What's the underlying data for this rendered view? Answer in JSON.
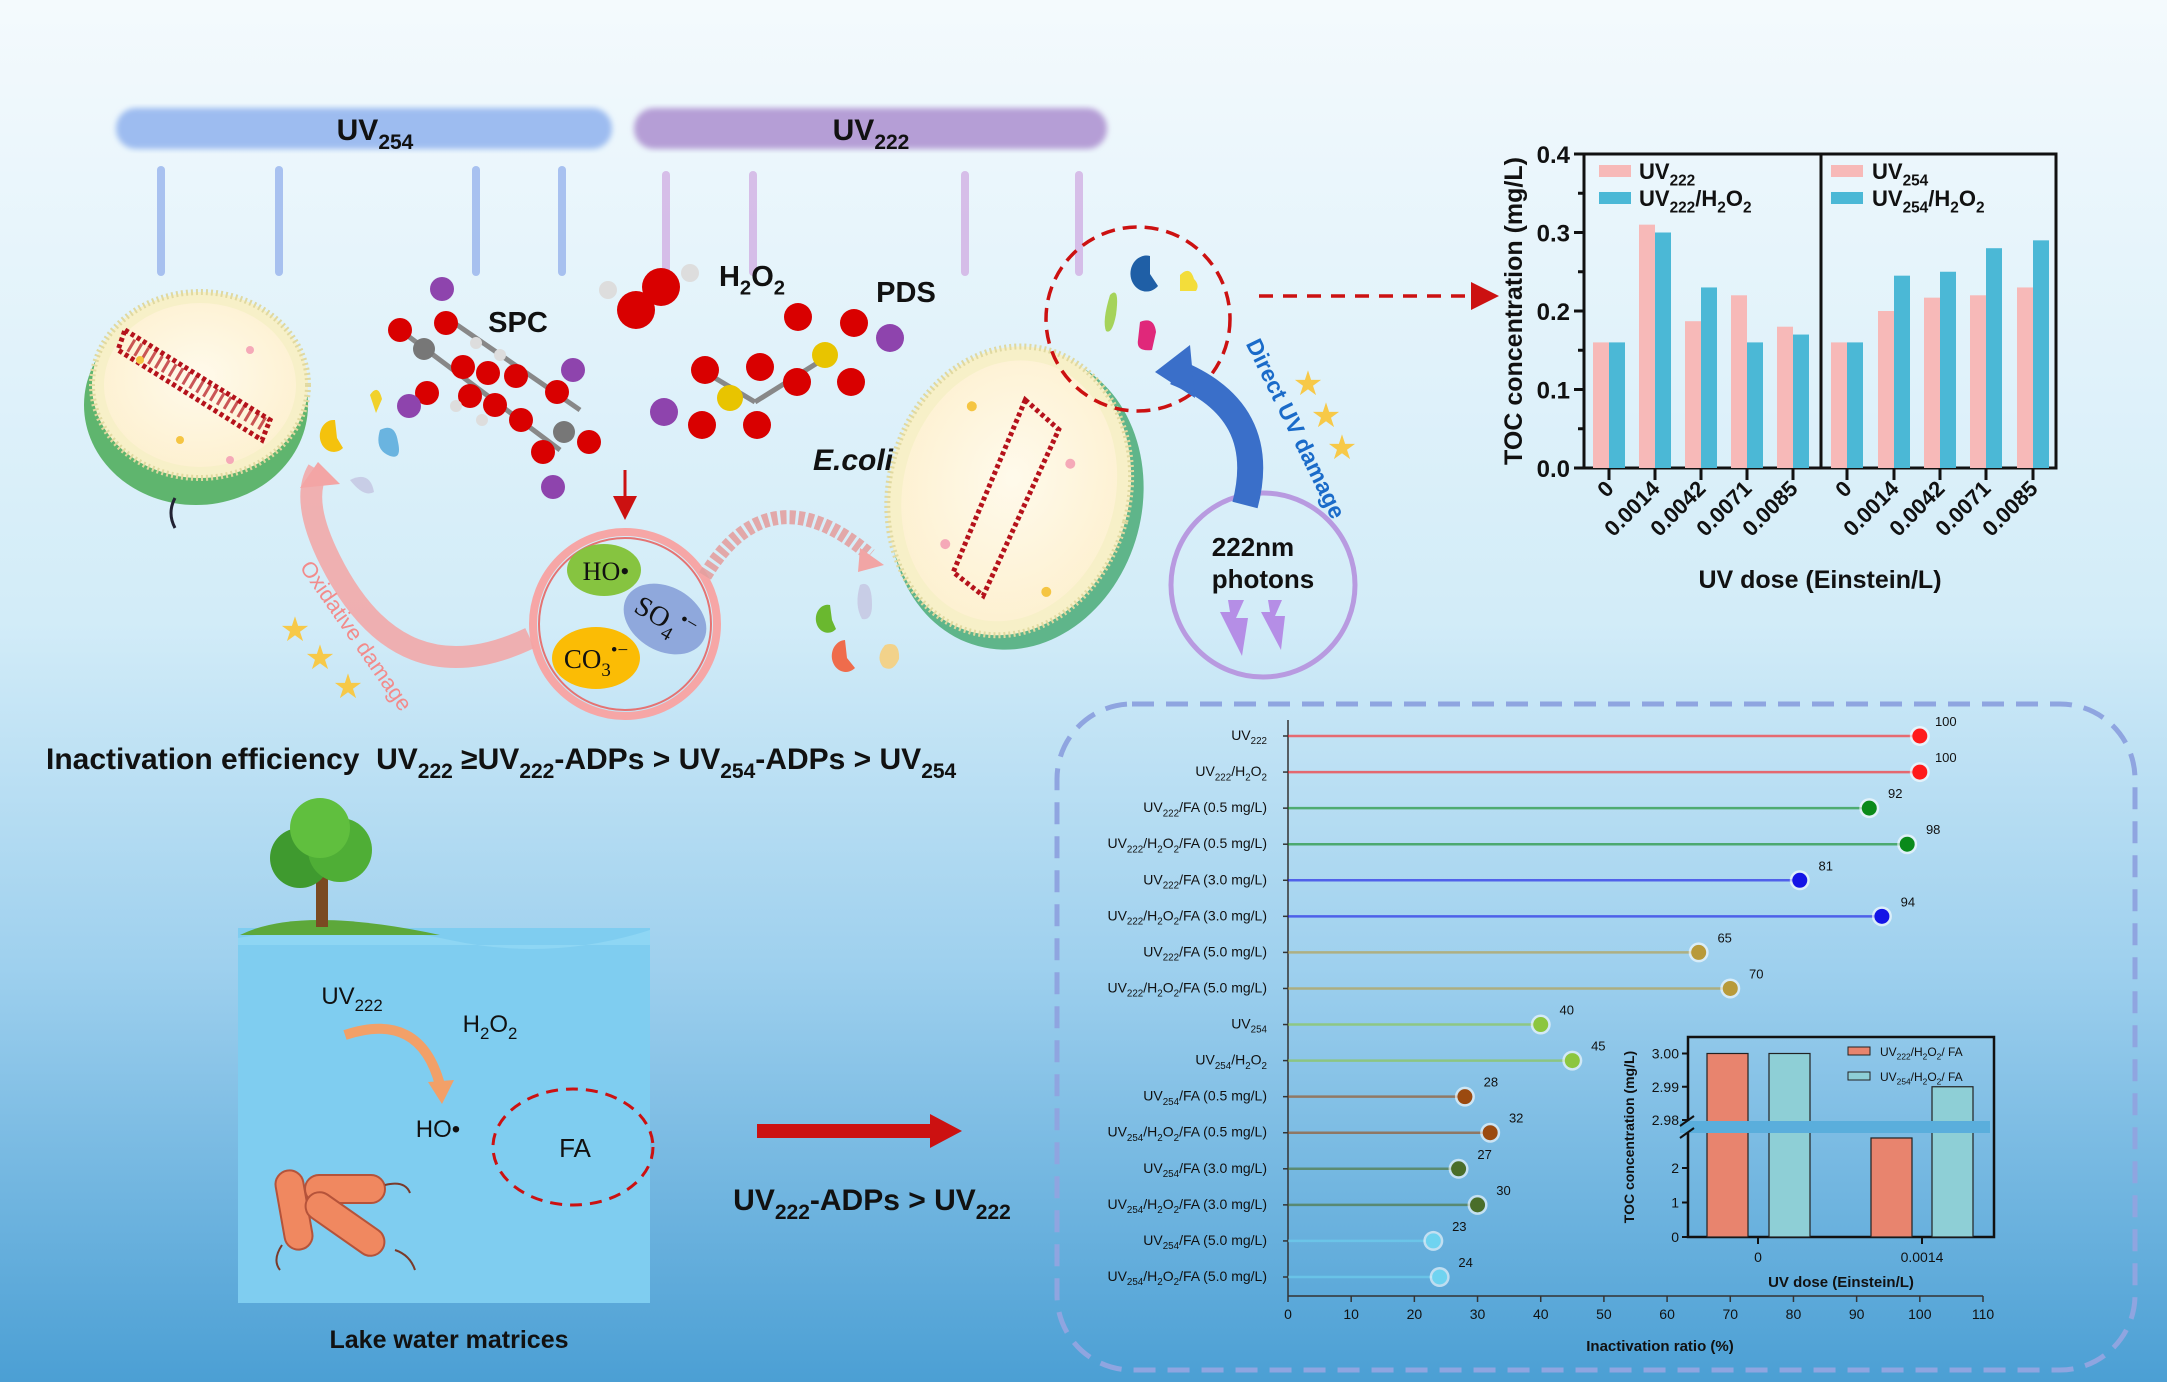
{
  "header": {
    "uv254_label": "UV254",
    "uv222_label": "UV222"
  },
  "reagents": {
    "spc": "SPC",
    "h2o2": "H2O2",
    "pds": "PDS"
  },
  "cell_label": "E.coli",
  "radicals": {
    "ho": "HO•",
    "so4": "SO4•−",
    "co3": "CO3•−"
  },
  "annotations": {
    "oxidative": "Oxidative damage",
    "direct": "Direct UV damage",
    "photons_line1": "222nm",
    "photons_line2": "photons"
  },
  "efficiency_statement": "Inactivation efficiency  UV222 ≥UV222-ADPs > UV254-ADPs > UV254",
  "lake": {
    "uv222": "UV222",
    "h2o2": "H2O2",
    "ho": "HO•",
    "fa": "FA",
    "caption": "Lake water matrices"
  },
  "comparison": "UV222-ADPs > UV222",
  "colors": {
    "uv254_band": "#9dbcf0",
    "uv222_band": "#b59ed6",
    "arrow_red": "#cc1111",
    "lake_water": "#7fcdf0",
    "bar_pink": "#f7b9b8",
    "bar_cyan": "#4bb8d6"
  },
  "chart_data": [
    {
      "type": "bar",
      "ylabel": "TOC concentration (mg/L)",
      "xlabel": "UV dose (Einstein/L)",
      "ylim": [
        0,
        0.4
      ],
      "yticks": [
        0.0,
        0.1,
        0.2,
        0.3,
        0.4
      ],
      "legend": "top-left of each panel",
      "panels": [
        {
          "categories": [
            "0",
            "0.0014",
            "0.0042",
            "0.0071",
            "0.0085"
          ],
          "series": [
            {
              "name": "UV222",
              "color": "#f7b9b8",
              "values": [
                0.16,
                0.31,
                0.187,
                0.22,
                0.18
              ]
            },
            {
              "name": "UV222/H2O2",
              "color": "#4bb8d6",
              "values": [
                0.16,
                0.3,
                0.23,
                0.16,
                0.17
              ]
            }
          ]
        },
        {
          "categories": [
            "0",
            "0.0014",
            "0.0042",
            "0.0071",
            "0.0085"
          ],
          "series": [
            {
              "name": "UV254",
              "color": "#f7b9b8",
              "values": [
                0.16,
                0.2,
                0.217,
                0.22,
                0.23
              ]
            },
            {
              "name": "UV254/H2O2",
              "color": "#4bb8d6",
              "values": [
                0.16,
                0.245,
                0.25,
                0.28,
                0.29
              ]
            }
          ]
        }
      ]
    },
    {
      "type": "lollipop",
      "xlabel": "Inactivation ratio (%)",
      "xlim": [
        0,
        110
      ],
      "xticks": [
        0,
        10,
        20,
        30,
        40,
        50,
        60,
        70,
        80,
        90,
        100,
        110
      ],
      "categories": [
        "UV222",
        "UV222/H2O2",
        "UV222/FA (0.5 mg/L)",
        "UV222/H2O2/FA (0.5 mg/L)",
        "UV222/FA (3.0 mg/L)",
        "UV222/H2O2/FA (3.0 mg/L)",
        "UV222/FA (5.0 mg/L)",
        "UV222/H2O2/FA (5.0 mg/L)",
        "UV254",
        "UV254/H2O2",
        "UV254/FA (0.5 mg/L)",
        "UV254/H2O2/FA (0.5 mg/L)",
        "UV254/FA (3.0 mg/L)",
        "UV254/H2O2/FA (3.0 mg/L)",
        "UV254/FA (5.0 mg/L)",
        "UV254/H2O2/FA (5.0 mg/L)"
      ],
      "values": [
        100,
        100,
        92,
        98,
        81,
        94,
        65,
        70,
        40,
        45,
        28,
        32,
        27,
        30,
        23,
        24
      ],
      "colors": [
        "#ff1a1a",
        "#ff1a1a",
        "#0a8a1a",
        "#0a8a1a",
        "#1414e6",
        "#1414e6",
        "#b89a3a",
        "#b89a3a",
        "#8cc63f",
        "#8cc63f",
        "#9b4a10",
        "#9b4a10",
        "#4a6e2a",
        "#4a6e2a",
        "#6fd3f0",
        "#6fd3f0"
      ]
    },
    {
      "type": "bar",
      "ylabel": "TOC concentration (mg/L)",
      "xlabel": "UV dose (Einstein/L)",
      "axis_break": true,
      "lower_yticks": [
        "0",
        "1",
        "2"
      ],
      "upper_yticks": [
        "2.98",
        "2.99",
        "3.00"
      ],
      "categories": [
        "0",
        "0.0014"
      ],
      "legend": "top-right",
      "series": [
        {
          "name": "UV222/H2O2/ FA",
          "color": "#e8846e",
          "values": [
            3.0,
            2.87
          ]
        },
        {
          "name": "UV254/H2O2/ FA",
          "color": "#8ecfd6",
          "values": [
            3.0,
            2.99
          ]
        }
      ]
    }
  ]
}
